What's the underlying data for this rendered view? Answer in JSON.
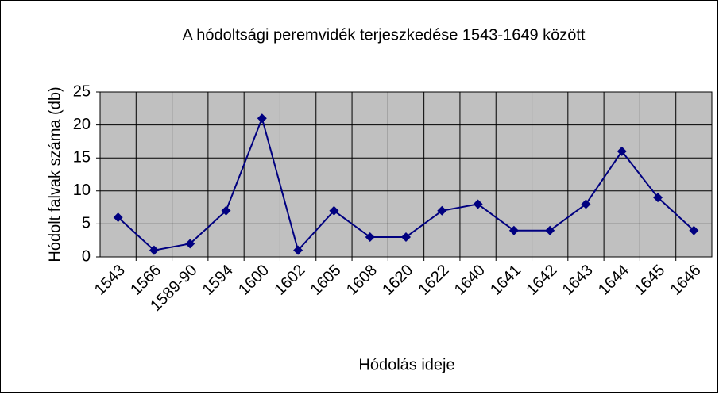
{
  "chart_data": {
    "type": "line",
    "title": "A hódoltsági peremvidék terjeszkedése 1543-1649 között",
    "x_label": "Hódolás ideje",
    "y_label": "Hódolt falvak száma (db)",
    "categories": [
      "1543",
      "1566",
      "1589-90",
      "1594",
      "1600",
      "1602",
      "1605",
      "1608",
      "1620",
      "1622",
      "1640",
      "1641",
      "1642",
      "1643",
      "1644",
      "1645",
      "1646"
    ],
    "values": [
      6,
      1,
      2,
      7,
      21,
      1,
      7,
      3,
      3,
      7,
      8,
      4,
      4,
      8,
      16,
      9,
      4
    ],
    "color": "#000080",
    "ylim": [
      0,
      25
    ],
    "yticks": [
      0,
      5,
      10,
      15,
      20,
      25
    ],
    "grid": true
  }
}
